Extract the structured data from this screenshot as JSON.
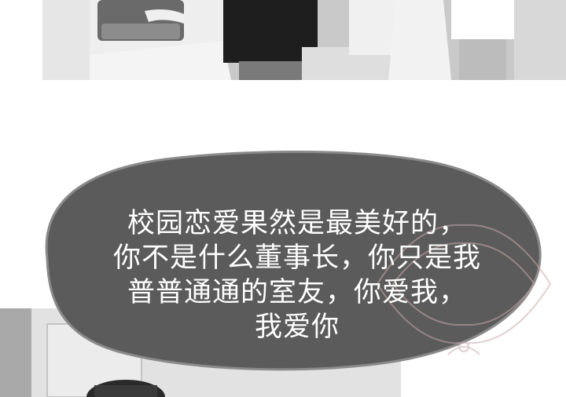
{
  "speech_bubble": {
    "lines": [
      "校园恋爱果然是最美好的，",
      "你不是什么董事长，你只是我",
      "普普通通的室友，你爱我，",
      "我爱你"
    ]
  },
  "colors": {
    "bubble_fill": "#5b5b5b",
    "bubble_stroke": "#8a8a8a",
    "text": "#ffffff"
  }
}
